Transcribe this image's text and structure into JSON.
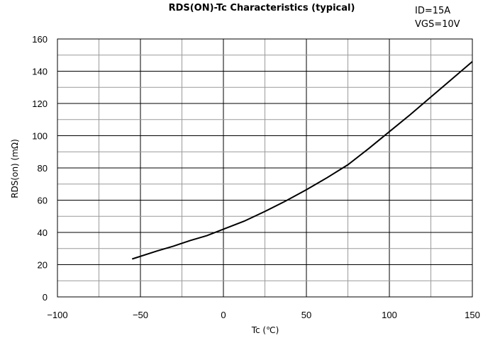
{
  "chart_data": {
    "type": "line",
    "title": "RDS(ON)-Tc Characteristics (typical)",
    "conditions": [
      "ID=15A",
      "VGS=10V"
    ],
    "xlabel": "Tc (℃)",
    "ylabel": "RDS(on) (mΩ)",
    "xlim": [
      -100,
      150
    ],
    "ylim": [
      0,
      160
    ],
    "x_ticks": [
      -100,
      -50,
      0,
      50,
      100,
      150
    ],
    "y_ticks": [
      0,
      20,
      40,
      60,
      80,
      100,
      120,
      140,
      160
    ],
    "x_tick_labels": [
      "−100",
      "−50",
      "0",
      "50",
      "100",
      "150"
    ],
    "y_tick_labels": [
      "0",
      "20",
      "40",
      "60",
      "80",
      "100",
      "120",
      "140",
      "160"
    ],
    "grid": true,
    "series": [
      {
        "x": [
          -55,
          -40,
          -30,
          -20,
          -10,
          0,
          12.5,
          25,
          37.5,
          50,
          62.5,
          75,
          87.5,
          100,
          112.5,
          125,
          137.5,
          150
        ],
        "y": [
          23.5,
          28.5,
          31.5,
          35,
          38,
          42,
          47,
          53,
          59.5,
          66.5,
          74,
          82,
          92,
          102.5,
          113,
          124,
          135,
          146
        ]
      }
    ],
    "colors": {
      "line": "#000000",
      "grid_major": "#000000",
      "grid_minor": "#9a9a9a"
    }
  }
}
